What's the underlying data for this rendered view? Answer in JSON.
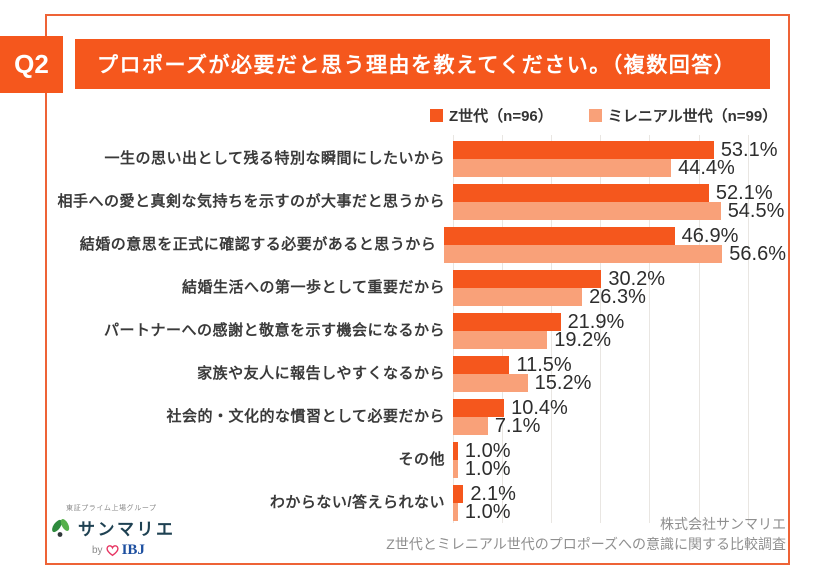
{
  "header": {
    "q_label": "Q2",
    "title": "プロポーズが必要だと思う理由を教えてください。（複数回答）"
  },
  "legend": [
    {
      "label": "Z世代（n=96）",
      "color": "#f5571d"
    },
    {
      "label": "ミレニアル世代（n=99）",
      "color": "#f9a179"
    }
  ],
  "chart_data": {
    "type": "bar",
    "orientation": "horizontal",
    "title": "プロポーズが必要だと思う理由を教えてください。（複数回答）",
    "categories": [
      "一生の思い出として残る特別な瞬間にしたいから",
      "相手への愛と真剣な気持ちを示すのが大事だと思うから",
      "結婚の意思を正式に確認する必要があると思うから",
      "結婚生活への第一歩として重要だから",
      "パートナーへの感謝と敬意を示す機会になるから",
      "家族や友人に報告しやすくなるから",
      "社会的・文化的な慣習として必要だから",
      "その他",
      "わからない/答えられない"
    ],
    "series": [
      {
        "name": "Z世代（n=96）",
        "color": "#f5571d",
        "values": [
          53.1,
          52.1,
          46.9,
          30.2,
          21.9,
          11.5,
          10.4,
          1.0,
          2.1
        ]
      },
      {
        "name": "ミレニアル世代（n=99）",
        "color": "#f9a179",
        "values": [
          44.4,
          54.5,
          56.6,
          26.3,
          19.2,
          15.2,
          7.1,
          1.0,
          1.0
        ]
      }
    ],
    "value_suffix": "%",
    "value_labels": true,
    "xlim": [
      0,
      68
    ],
    "gridlines": [
      0,
      10,
      20,
      30,
      40,
      50,
      60
    ],
    "grid": true,
    "legend_position": "top-right"
  },
  "footer": {
    "company": "株式会社サンマリエ",
    "survey": "Z世代とミレニアル世代のプロポーズへの意識に関する比較調査"
  },
  "logo": {
    "tagline": "東証プライム上場グループ",
    "brand": "サンマリエ",
    "by": "by",
    "partner": "IBJ"
  },
  "colors": {
    "accent_orange": "#f5571d",
    "accent_salmon": "#f9a179",
    "card_border": "#ee6336",
    "gridline": "#e9e6e2",
    "value_text": "#2d2d2d",
    "footer_text": "#8f8f8f",
    "brand_navy": "#1e4152",
    "partner_blue": "#1d4fa0",
    "heart_pink": "#e73562",
    "leaf_green_dark": "#2e8b3d",
    "leaf_green_light": "#56b04b"
  }
}
